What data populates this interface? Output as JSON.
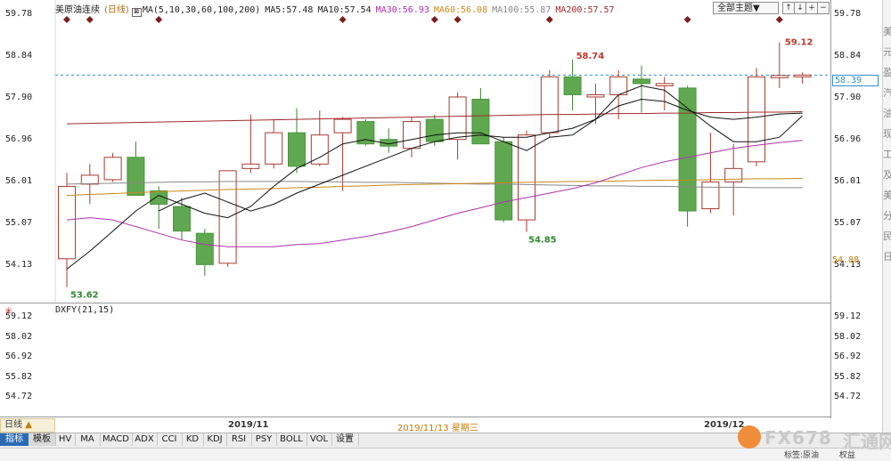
{
  "title_bar": {
    "symbol": "美原油连续",
    "period": "(日线)",
    "ma_icon": "chart-icon",
    "ma_params": "MA(5,10,30,60,100,200)",
    "ma5": "MA5:57.48",
    "ma10": "MA10:57.54",
    "ma30": "MA30:56.93",
    "ma60": "MA60:56.08",
    "ma100": "MA100:55.87",
    "ma200": "MA200:57.57",
    "topic_select": "全部主题▼",
    "colors": {
      "ma5": "#222222",
      "ma10": "#222222",
      "ma30": "#b030b0",
      "ma60": "#c88a1a",
      "ma100": "#888888",
      "ma200": "#a02a2a"
    }
  },
  "toolbar_icons": [
    "up-arrow-icon",
    "down-arrow-icon",
    "plus-icon",
    "minus-icon"
  ],
  "axis": {
    "main_ticks": [
      "59.78",
      "58.84",
      "57.90",
      "56.96",
      "56.01",
      "55.07",
      "54.13"
    ],
    "sub_ticks": [
      "59.12",
      "58.02",
      "56.92",
      "55.82",
      "54.72"
    ],
    "last_price": "58.39",
    "low_marker": "54.88"
  },
  "annotations": {
    "high1": "58.74",
    "high2": "59.12",
    "low1": "54.85",
    "low2": "53.62"
  },
  "sub_indicator": {
    "label": "DXFY(21,15)"
  },
  "time_axis": {
    "period_tab": "日线",
    "period_arrow": "▲",
    "m1": "2019/11",
    "m2": "2019/12",
    "cursor_date": "2019/11/13 星期三"
  },
  "tabs": [
    "指标",
    "模板",
    "HV",
    "MA",
    "MACD",
    "ADX",
    "CCI",
    "KD",
    "KDJ",
    "RSI",
    "PSY",
    "BOLL",
    "VOL",
    "设置"
  ],
  "watermark": {
    "brand": "FX678",
    "cn": "汇通网"
  },
  "statusbar": {
    "text": "标签:原油        权益"
  },
  "edge_text": "美元盈汽油现工及美分民日",
  "chart_data": {
    "type": "candlestick",
    "colors": {
      "up": "#a83a2e",
      "down": "#5fa84f",
      "ma5": "#111111",
      "ma10": "#111111",
      "ma30": "#b030b0",
      "ma60": "#c88a1a",
      "ma100": "#888888",
      "ma200": "#a02a2a"
    },
    "candles": [
      {
        "o": 54.28,
        "h": 56.2,
        "l": 53.65,
        "c": 55.9
      },
      {
        "o": 55.95,
        "h": 56.4,
        "l": 55.5,
        "c": 56.15
      },
      {
        "o": 56.05,
        "h": 56.65,
        "l": 56.0,
        "c": 56.55
      },
      {
        "o": 56.55,
        "h": 56.9,
        "l": 55.7,
        "c": 55.7
      },
      {
        "o": 55.8,
        "h": 55.9,
        "l": 54.95,
        "c": 55.5
      },
      {
        "o": 55.45,
        "h": 55.65,
        "l": 54.7,
        "c": 54.9
      },
      {
        "o": 54.85,
        "h": 54.95,
        "l": 53.9,
        "c": 54.15
      },
      {
        "o": 54.18,
        "h": 56.25,
        "l": 54.1,
        "c": 56.25
      },
      {
        "o": 56.3,
        "h": 57.5,
        "l": 56.2,
        "c": 56.4
      },
      {
        "o": 56.4,
        "h": 57.4,
        "l": 56.3,
        "c": 57.1
      },
      {
        "o": 57.1,
        "h": 57.65,
        "l": 56.2,
        "c": 56.35
      },
      {
        "o": 56.4,
        "h": 57.6,
        "l": 56.35,
        "c": 57.05
      },
      {
        "o": 57.1,
        "h": 57.45,
        "l": 55.8,
        "c": 57.4
      },
      {
        "o": 57.35,
        "h": 57.4,
        "l": 56.8,
        "c": 56.85
      },
      {
        "o": 56.95,
        "h": 57.2,
        "l": 56.65,
        "c": 56.8
      },
      {
        "o": 56.75,
        "h": 57.45,
        "l": 56.55,
        "c": 57.35
      },
      {
        "o": 57.4,
        "h": 57.5,
        "l": 56.8,
        "c": 56.9
      },
      {
        "o": 56.95,
        "h": 58.0,
        "l": 56.5,
        "c": 57.9
      },
      {
        "o": 57.85,
        "h": 58.1,
        "l": 56.9,
        "c": 56.85
      },
      {
        "o": 56.9,
        "h": 57.0,
        "l": 55.1,
        "c": 55.15
      },
      {
        "o": 55.15,
        "h": 57.15,
        "l": 54.88,
        "c": 57.05
      },
      {
        "o": 57.1,
        "h": 58.5,
        "l": 57.0,
        "c": 58.35
      },
      {
        "o": 58.35,
        "h": 58.74,
        "l": 57.6,
        "c": 57.95
      },
      {
        "o": 57.9,
        "h": 58.2,
        "l": 57.3,
        "c": 57.95
      },
      {
        "o": 57.95,
        "h": 58.5,
        "l": 57.4,
        "c": 58.35
      },
      {
        "o": 58.3,
        "h": 58.6,
        "l": 57.55,
        "c": 58.2
      },
      {
        "o": 58.15,
        "h": 58.35,
        "l": 57.6,
        "c": 58.2
      },
      {
        "o": 58.1,
        "h": 58.15,
        "l": 55.0,
        "c": 55.35
      },
      {
        "o": 55.4,
        "h": 57.1,
        "l": 55.3,
        "c": 56.0
      },
      {
        "o": 56.0,
        "h": 56.85,
        "l": 55.25,
        "c": 56.3
      },
      {
        "o": 56.45,
        "h": 58.55,
        "l": 56.35,
        "c": 58.35
      },
      {
        "o": 58.33,
        "h": 59.12,
        "l": 58.1,
        "c": 58.38
      },
      {
        "o": 58.35,
        "h": 58.45,
        "l": 58.2,
        "c": 58.39
      }
    ],
    "ma5": [
      54.05,
      54.45,
      54.9,
      55.35,
      55.7,
      55.5,
      55.3,
      55.2,
      55.45,
      55.9,
      56.3,
      56.55,
      56.85,
      56.95,
      56.85,
      56.95,
      57.05,
      57.1,
      57.1,
      56.9,
      56.7,
      57.0,
      57.05,
      57.4,
      57.95,
      58.15,
      58.05,
      57.65,
      57.25,
      56.9,
      56.9,
      57.0,
      57.48
    ],
    "ma10": [
      null,
      null,
      null,
      null,
      55.35,
      55.6,
      55.75,
      55.55,
      55.35,
      55.5,
      55.75,
      55.95,
      56.15,
      56.35,
      56.55,
      56.75,
      56.9,
      57.0,
      57.05,
      57.0,
      57.0,
      57.1,
      57.2,
      57.4,
      57.7,
      57.85,
      57.8,
      57.6,
      57.45,
      57.4,
      57.45,
      57.52,
      57.54
    ],
    "ma30": [
      55.15,
      55.2,
      55.15,
      55.0,
      54.85,
      54.7,
      54.6,
      54.55,
      54.55,
      54.55,
      54.6,
      54.62,
      54.7,
      54.78,
      54.88,
      55.0,
      55.15,
      55.3,
      55.42,
      55.55,
      55.65,
      55.75,
      55.85,
      55.98,
      56.15,
      56.32,
      56.45,
      56.55,
      56.65,
      56.75,
      56.82,
      56.88,
      56.93
    ],
    "ma60": [
      55.7,
      55.72,
      55.74,
      55.76,
      55.78,
      55.8,
      55.81,
      55.83,
      55.84,
      55.85,
      55.87,
      55.88,
      55.9,
      55.91,
      55.93,
      55.94,
      55.95,
      55.96,
      55.97,
      55.98,
      55.99,
      56.0,
      56.01,
      56.01,
      56.02,
      56.03,
      56.04,
      56.04,
      56.05,
      56.06,
      56.07,
      56.07,
      56.08
    ],
    "ma100": [
      55.95,
      55.96,
      55.97,
      55.98,
      55.99,
      56.0,
      56.0,
      56.01,
      56.01,
      56.01,
      56.01,
      56.0,
      56.0,
      55.99,
      55.99,
      55.98,
      55.97,
      55.96,
      55.95,
      55.95,
      55.94,
      55.93,
      55.92,
      55.91,
      55.91,
      55.9,
      55.9,
      55.89,
      55.88,
      55.88,
      55.87,
      55.87,
      55.87
    ],
    "ma200": [
      57.3,
      57.31,
      57.32,
      57.33,
      57.34,
      57.35,
      57.36,
      57.37,
      57.38,
      57.39,
      57.4,
      57.41,
      57.42,
      57.43,
      57.44,
      57.45,
      57.46,
      57.47,
      57.48,
      57.49,
      57.5,
      57.51,
      57.51,
      57.52,
      57.53,
      57.53,
      57.54,
      57.54,
      57.55,
      57.55,
      57.56,
      57.56,
      57.57
    ],
    "ylim": [
      53.4,
      59.95
    ],
    "event_marker_indices": [
      0,
      1,
      4,
      12,
      16,
      17,
      21,
      27,
      31
    ]
  }
}
